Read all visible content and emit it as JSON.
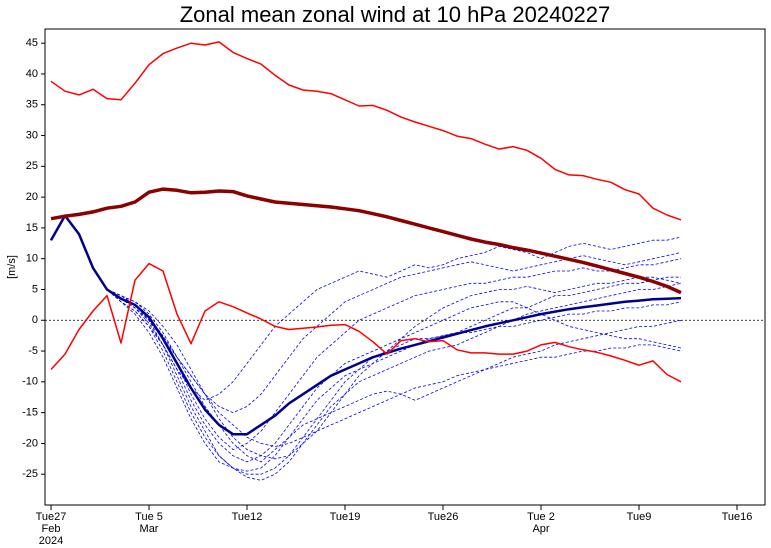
{
  "chart_data": {
    "type": "line",
    "title": "Zonal mean zonal wind at 10 hPa 20240227",
    "ylabel": "[m/s]",
    "x": [
      0,
      1,
      2,
      3,
      4,
      5,
      6,
      7,
      8,
      9,
      10,
      11,
      12,
      13,
      14,
      15,
      16,
      17,
      18,
      19,
      20,
      21,
      22,
      23,
      24,
      25,
      26,
      27,
      28,
      29,
      30,
      31,
      32,
      33,
      34,
      35,
      36,
      37,
      38,
      39,
      40,
      41,
      42,
      43,
      44,
      45
    ],
    "xlim": [
      -0.43,
      51
    ],
    "xticks": [
      {
        "value": 0,
        "label": "Tue27",
        "sub": [
          "Feb",
          "2024"
        ]
      },
      {
        "value": 7,
        "label": "Tue 5",
        "sub": [
          "Mar"
        ]
      },
      {
        "value": 14,
        "label": "Tue12"
      },
      {
        "value": 21,
        "label": "Tue19"
      },
      {
        "value": 28,
        "label": "Tue26"
      },
      {
        "value": 35,
        "label": "Tue 2",
        "sub": [
          "Apr"
        ]
      },
      {
        "value": 42,
        "label": "Tue9"
      },
      {
        "value": 49,
        "label": "Tue16"
      }
    ],
    "ylim": [
      -30,
      47.3
    ],
    "yticks": [
      -25,
      -20,
      -15,
      -10,
      -5,
      0,
      5,
      10,
      15,
      20,
      25,
      30,
      35,
      40,
      45
    ],
    "reference_line": 0,
    "grid": false,
    "series": [
      {
        "color": "#0000ff",
        "dash": true,
        "linewidth": 0.8,
        "values": [
          13,
          17,
          14,
          8.5,
          5,
          4,
          2.5,
          0,
          -4,
          -9,
          -14,
          -18,
          -22,
          -24,
          -25.5,
          -26,
          -25,
          -23,
          -20,
          -17,
          -14,
          -12,
          -10,
          -9,
          -8,
          -7,
          -6,
          -5,
          -4.5,
          -4,
          -3,
          -2,
          -1,
          0,
          1,
          1.5,
          2,
          2.5,
          3,
          3.5,
          4,
          4.5,
          5,
          5,
          5.5,
          6
        ]
      },
      {
        "color": "#0000ff",
        "dash": true,
        "linewidth": 0.8,
        "values": [
          13,
          17,
          14,
          8.5,
          5,
          3,
          1.5,
          -1,
          -4,
          -8,
          -11,
          -13,
          -12,
          -10,
          -7,
          -4,
          -1,
          1,
          3,
          5,
          6,
          7,
          8,
          7.5,
          7,
          8,
          9,
          8.5,
          9,
          10,
          10.5,
          11,
          12,
          11.5,
          11,
          10,
          11,
          12,
          12.5,
          12,
          11.5,
          12,
          12.5,
          13,
          13,
          13.5
        ]
      },
      {
        "color": "#0000ff",
        "dash": true,
        "linewidth": 0.8,
        "values": [
          13,
          17,
          14,
          8.5,
          5,
          4,
          3,
          1,
          -2,
          -6,
          -10,
          -14,
          -17,
          -20,
          -22,
          -23,
          -21,
          -19,
          -17,
          -16,
          -15,
          -14,
          -13,
          -12,
          -11.5,
          -12,
          -13,
          -12,
          -11,
          -10,
          -9,
          -8,
          -7,
          -6,
          -5.5,
          -5,
          -4,
          -3.5,
          -3,
          -2.5,
          -2,
          -1.5,
          -1,
          -1,
          -0.5,
          0
        ]
      },
      {
        "color": "#0000ff",
        "dash": true,
        "linewidth": 0.8,
        "values": [
          13,
          17,
          14,
          8.5,
          5,
          3.5,
          2,
          0,
          -3,
          -7,
          -12,
          -16,
          -19,
          -21,
          -20,
          -18,
          -15,
          -12,
          -9,
          -6,
          -4,
          -2,
          0,
          1,
          2,
          3,
          4,
          4.5,
          5,
          5.5,
          6,
          6,
          6.5,
          7,
          7,
          7.5,
          8,
          8,
          8.5,
          8,
          8,
          8.5,
          9,
          9,
          9.5,
          10
        ]
      },
      {
        "color": "#0000ff",
        "dash": true,
        "linewidth": 0.8,
        "values": [
          13,
          17,
          14,
          8.5,
          5,
          3,
          1,
          -2,
          -6,
          -11,
          -16,
          -20,
          -23,
          -24,
          -24.5,
          -24,
          -22,
          -19,
          -16,
          -13,
          -11,
          -9,
          -8,
          -7,
          -6,
          -5,
          -4,
          -3,
          -2.5,
          -2,
          -1,
          0,
          1,
          2,
          2,
          3,
          4,
          4,
          4.5,
          5,
          5.5,
          6,
          6,
          6.5,
          7,
          7
        ]
      },
      {
        "color": "#0000ff",
        "dash": true,
        "linewidth": 0.8,
        "values": [
          13,
          17,
          14,
          8.5,
          5,
          4,
          2.5,
          0.5,
          -2.5,
          -6,
          -9,
          -12,
          -15,
          -17,
          -19,
          -20,
          -20.5,
          -20,
          -19,
          -18,
          -17,
          -16,
          -15,
          -14,
          -13,
          -12,
          -11,
          -10.5,
          -10,
          -9,
          -8.5,
          -8,
          -7.5,
          -7,
          -6.5,
          -6,
          -6,
          -5.5,
          -5,
          -5,
          -4.5,
          -4.5,
          -4,
          -4,
          -4.5,
          -5
        ]
      },
      {
        "color": "#0000ff",
        "dash": true,
        "linewidth": 0.8,
        "values": [
          13,
          17,
          14,
          8.5,
          5,
          3.5,
          2,
          -0.5,
          -4,
          -8,
          -13,
          -17,
          -20,
          -22,
          -23,
          -22,
          -20,
          -17,
          -14,
          -11,
          -9,
          -7,
          -6,
          -5,
          -4,
          -3,
          -2,
          -1,
          0,
          1,
          2,
          2.5,
          3,
          3,
          2,
          1,
          0,
          -1,
          -1.5,
          -2,
          -2.5,
          -3,
          -3,
          -3.5,
          -4,
          -4.5
        ]
      },
      {
        "color": "#0000ff",
        "dash": true,
        "linewidth": 0.8,
        "values": [
          13,
          17,
          14,
          8.5,
          5,
          4,
          3,
          1.5,
          -1,
          -4,
          -8,
          -12,
          -16,
          -19,
          -21,
          -22,
          -22.5,
          -22,
          -20,
          -18,
          -15,
          -12,
          -9,
          -7,
          -5,
          -3,
          -1,
          0.5,
          2,
          3,
          4,
          4.5,
          5,
          5,
          5.5,
          5,
          4.5,
          5,
          5.5,
          6,
          6,
          6.5,
          7,
          7,
          6.5,
          6
        ]
      },
      {
        "color": "#0000ff",
        "dash": true,
        "linewidth": 0.8,
        "values": [
          13,
          17,
          14,
          8.5,
          5,
          3,
          1.5,
          -1,
          -5,
          -10,
          -15,
          -19,
          -22,
          -24,
          -25,
          -25,
          -24,
          -22,
          -19,
          -16,
          -13,
          -10,
          -8,
          -6,
          -5,
          -4,
          -3,
          -3,
          -2.5,
          -2,
          -2,
          -1.5,
          -1,
          -1,
          -0.5,
          0,
          0.5,
          1,
          1,
          1.5,
          1.5,
          2,
          2,
          2.5,
          2.5,
          3
        ]
      },
      {
        "color": "#0000ff",
        "dash": true,
        "linewidth": 0.8,
        "values": [
          13,
          17,
          14,
          8.5,
          5,
          3.5,
          2,
          0,
          -3,
          -6,
          -9,
          -12,
          -14,
          -15,
          -14,
          -12,
          -9,
          -6,
          -3,
          -1,
          1,
          3,
          4,
          5,
          6,
          7,
          7.5,
          8,
          8.5,
          9,
          9.5,
          9,
          8.5,
          8,
          8.5,
          9,
          9.5,
          10,
          10.5,
          10,
          9.5,
          9,
          9.5,
          10,
          10.5,
          11
        ]
      },
      {
        "color": "#00008b",
        "dash": false,
        "linewidth": 2.5,
        "values": [
          13,
          17,
          14,
          8.5,
          5,
          3.5,
          2.5,
          0.5,
          -3,
          -7,
          -11,
          -14.5,
          -17,
          -18.5,
          -18.5,
          -17,
          -15.5,
          -13.5,
          -12,
          -10.5,
          -9,
          -8,
          -7,
          -6,
          -5.3,
          -4.6,
          -4,
          -3.4,
          -2.8,
          -2.2,
          -1.6,
          -1,
          -0.5,
          0,
          0.5,
          1,
          1.4,
          1.8,
          2.1,
          2.4,
          2.7,
          3,
          3.2,
          3.4,
          3.5,
          3.6
        ]
      },
      {
        "color": "#8b0000",
        "dash": false,
        "linewidth": 3.5,
        "values": [
          16.5,
          16.9,
          17.2,
          17.6,
          18.2,
          18.5,
          19.2,
          20.8,
          21.3,
          21.1,
          20.7,
          20.8,
          21,
          20.9,
          20.2,
          19.7,
          19.2,
          19,
          18.8,
          18.6,
          18.4,
          18.1,
          17.8,
          17.3,
          16.8,
          16.2,
          15.6,
          15,
          14.4,
          13.8,
          13.2,
          12.7,
          12.3,
          11.8,
          11.4,
          10.9,
          10.4,
          9.9,
          9.4,
          8.8,
          8.2,
          7.6,
          7,
          6.3,
          5.5,
          4.5
        ]
      },
      {
        "color": "#ff0000",
        "dash": false,
        "linewidth": 1.5,
        "values": [
          38.8,
          37.2,
          36.6,
          37.5,
          36,
          35.8,
          38.5,
          41.5,
          43.3,
          44.2,
          45,
          44.7,
          45.2,
          43.5,
          42.5,
          41.6,
          39.8,
          38.2,
          37.4,
          37.2,
          36.8,
          35.8,
          34.8,
          34.9,
          34.1,
          33,
          32.2,
          31.5,
          30.8,
          29.9,
          29.5,
          28.6,
          27.8,
          28.2,
          27.6,
          26.3,
          24.5,
          23.6,
          23.5,
          22.9,
          22.4,
          21.2,
          20.5,
          18.2,
          17.1,
          16.3
        ]
      },
      {
        "color": "#ff0000",
        "dash": false,
        "linewidth": 1.5,
        "values": [
          -8,
          -5.5,
          -1.5,
          1.5,
          4,
          -3.7,
          6.5,
          9.2,
          8,
          1,
          -3.8,
          1.5,
          3,
          2.2,
          1.2,
          0.2,
          -1,
          -1.5,
          -1.3,
          -1.1,
          -0.8,
          -0.7,
          -1.8,
          -3.5,
          -5.5,
          -3.3,
          -3,
          -3.5,
          -3.3,
          -4.8,
          -5.3,
          -5.3,
          -5.5,
          -5.5,
          -5,
          -4,
          -3.6,
          -4.3,
          -4.8,
          -5.2,
          -5.8,
          -6.5,
          -7.3,
          -6.6,
          -8.8,
          -10
        ]
      }
    ]
  }
}
